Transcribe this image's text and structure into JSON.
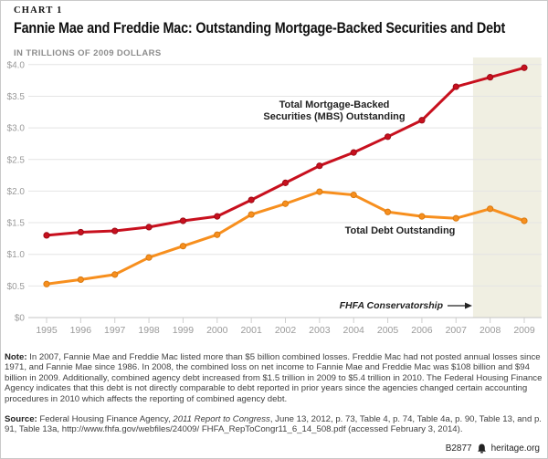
{
  "header": {
    "kicker": "CHART 1",
    "title": "Fannie Mae and Freddie Mac: Outstanding Mortgage-Backed Securities and Debt",
    "subtitle": "IN TRILLIONS OF 2009 DOLLARS"
  },
  "chart_data": {
    "type": "line",
    "x": [
      1995,
      1996,
      1997,
      1998,
      1999,
      2000,
      2001,
      2002,
      2003,
      2004,
      2005,
      2006,
      2007,
      2008,
      2009
    ],
    "series": [
      {
        "name": "Total Mortgage-Backed Securities (MBS) Outstanding",
        "color": "#c8101e",
        "marker_stroke": "#9c0c17",
        "values": [
          1.3,
          1.35,
          1.37,
          1.43,
          1.53,
          1.6,
          1.86,
          2.13,
          2.4,
          2.61,
          2.86,
          3.12,
          3.65,
          3.8,
          3.95
        ]
      },
      {
        "name": "Total Debt Outstanding",
        "color": "#f78f1e",
        "marker_stroke": "#d97a10",
        "values": [
          0.53,
          0.6,
          0.68,
          0.95,
          1.13,
          1.31,
          1.63,
          1.8,
          1.99,
          1.94,
          1.67,
          1.6,
          1.57,
          1.72,
          1.53
        ]
      }
    ],
    "ylim": [
      0,
      4.0
    ],
    "ytick_step": 0.5,
    "ytick_labels": [
      "$0",
      "$0.5",
      "$1.0",
      "$1.5",
      "$2.0",
      "$2.5",
      "$3.0",
      "$3.5",
      "$4.0"
    ],
    "xtick_labels": [
      "1995",
      "1996",
      "1997",
      "1998",
      "1999",
      "2000",
      "2001",
      "2002",
      "2003",
      "2004",
      "2005",
      "2006",
      "2007",
      "2008",
      "2009"
    ],
    "grid": true,
    "legend": "inline-annotations",
    "grid_color": "#e4e4e4",
    "axis_color": "#c4c4c4",
    "tick_label_color": "#9a9a9a",
    "shaded_region": {
      "from_x": 2007.5,
      "to_x": 2009.5,
      "color": "#f0efe2"
    },
    "annotations": {
      "mbs_line1": "Total Mortgage-Backed",
      "mbs_line2": "Securities (MBS) Outstanding",
      "debt_label": "Total Debt Outstanding",
      "conservatorship_label": "FHFA Conservatorship"
    }
  },
  "footnote": {
    "note_label": "Note:",
    "note_text": "In 2007, Fannie Mae and Freddie Mac listed more than $5 billion combined losses. Freddie Mac had not posted annual losses since 1971, and Fannie Mae since 1986. In 2008, the combined loss on net income to Fannie Mae and Freddie Mac was $108 billion and $94 billion in 2009. Additionally, combined agency debt increased from $1.5 trillion in 2009 to $5.4 trillion in 2010. The Federal Housing Finance Agency indicates that this debt is not directly comparable to debt reported in prior years since the agencies changed certain accounting procedures in 2010 which affects the reporting of combined agency debt.",
    "source_label": "Source:",
    "source_parts": [
      {
        "text": "Federal Housing Finance Agency, ",
        "italic": false
      },
      {
        "text": "2011 Report to Congress",
        "italic": true
      },
      {
        "text": ", June 13, 2012, p. 73, Table 4, p. 74, Table 4a, p. 90, Table 13, and p. 91, Table 13a, http://www.fhfa.gov/webfiles/24009/ FHFA_RepToCongr11_6_14_508.pdf (accessed February 3, 2014).",
        "italic": false
      }
    ]
  },
  "footer": {
    "chart_id": "B2877",
    "site": "heritage.org"
  }
}
